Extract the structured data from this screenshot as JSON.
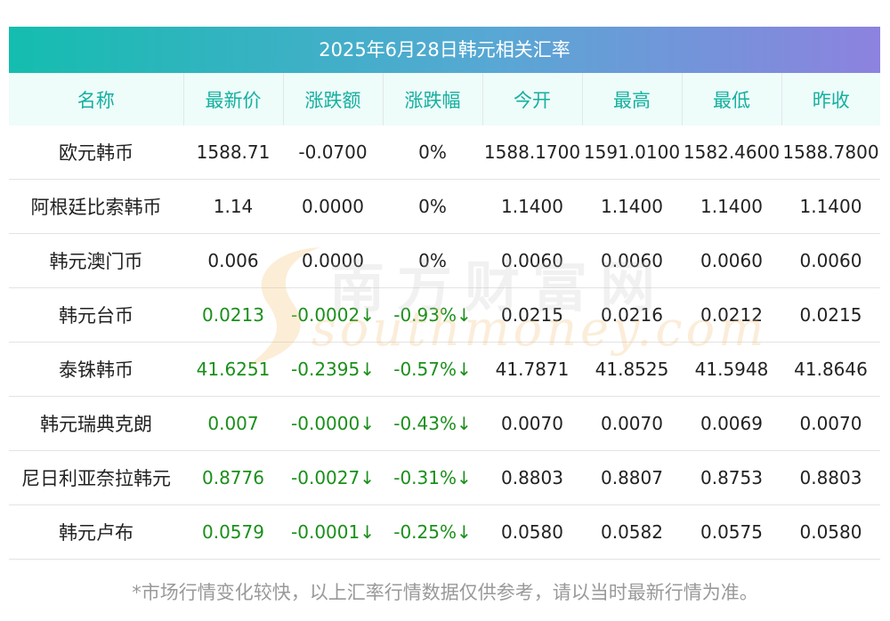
{
  "title": "2025年6月28日韩元相关汇率",
  "headers": [
    "名称",
    "最新价",
    "涨跌额",
    "涨跌幅",
    "今开",
    "最高",
    "最低",
    "昨收"
  ],
  "rows": [
    {
      "name": "欧元韩币",
      "latest": "1588.71",
      "change": "-0.0700",
      "pct": "0%",
      "open": "1588.1700",
      "high": "1591.0100",
      "low": "1582.4600",
      "prev": "1588.7800",
      "colored": false
    },
    {
      "name": "阿根廷比索韩币",
      "latest": "1.14",
      "change": "0.0000",
      "pct": "0%",
      "open": "1.1400",
      "high": "1.1400",
      "low": "1.1400",
      "prev": "1.1400",
      "colored": false
    },
    {
      "name": "韩元澳门币",
      "latest": "0.006",
      "change": "0.0000",
      "pct": "0%",
      "open": "0.0060",
      "high": "0.0060",
      "low": "0.0060",
      "prev": "0.0060",
      "colored": false
    },
    {
      "name": "韩元台币",
      "latest": "0.0213",
      "change": "-0.0002↓",
      "pct": "-0.93%↓",
      "open": "0.0215",
      "high": "0.0216",
      "low": "0.0212",
      "prev": "0.0215",
      "colored": true
    },
    {
      "name": "泰铢韩币",
      "latest": "41.6251",
      "change": "-0.2395↓",
      "pct": "-0.57%↓",
      "open": "41.7871",
      "high": "41.8525",
      "low": "41.5948",
      "prev": "41.8646",
      "colored": true
    },
    {
      "name": "韩元瑞典克朗",
      "latest": "0.007",
      "change": "-0.0000↓",
      "pct": "-0.43%↓",
      "open": "0.0070",
      "high": "0.0070",
      "low": "0.0069",
      "prev": "0.0070",
      "colored": true
    },
    {
      "name": "尼日利亚奈拉韩元",
      "latest": "0.8776",
      "change": "-0.0027↓",
      "pct": "-0.31%↓",
      "open": "0.8803",
      "high": "0.8807",
      "low": "0.8753",
      "prev": "0.8803",
      "colored": true
    },
    {
      "name": "韩元卢布",
      "latest": "0.0579",
      "change": "-0.0001↓",
      "pct": "-0.25%↓",
      "open": "0.0580",
      "high": "0.0582",
      "low": "0.0575",
      "prev": "0.0580",
      "colored": true
    }
  ],
  "watermark": {
    "cn": "南方财富网",
    "en": "southmoney.com"
  },
  "footer": "*市场行情变化较快，以上汇率行情数据仅供参考，请以当时最新行情为准。",
  "colors": {
    "accent": "#14b09f",
    "down_green": "#1a8f1a",
    "header_bg": "#eefcfa",
    "title_grad_start": "#14bdaf",
    "title_grad_end": "#8d82df"
  }
}
